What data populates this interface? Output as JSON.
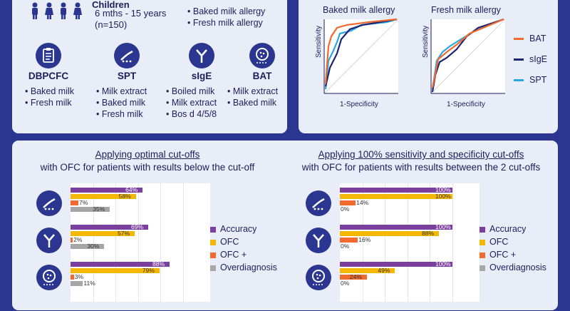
{
  "population": {
    "heading": "Children",
    "age": "6 mths - 15 years",
    "n": "(n=150)",
    "outcomes": [
      "Baked milk allergy",
      "Fresh milk allergy"
    ]
  },
  "methods": [
    {
      "name": "DBPCFC",
      "items": [
        "Baked milk",
        "Fresh milk"
      ]
    },
    {
      "name": "SPT",
      "items": [
        "Milk extract",
        "Baked milk",
        "Fresh milk"
      ]
    },
    {
      "name": "sIgE",
      "items": [
        "Boiled milk",
        "Milk extract",
        "Bos d 4/5/8"
      ]
    },
    {
      "name": "BAT",
      "items": [
        "Milk extract",
        "Baked milk"
      ]
    }
  ],
  "roc": {
    "panels": [
      {
        "title": "Baked milk allergy"
      },
      {
        "title": "Fresh milk allergy"
      }
    ],
    "ylabel": "Sensitivity",
    "xlabel": "1-Specificity",
    "legend": [
      {
        "label": "BAT",
        "color": "#f26a2e"
      },
      {
        "label": "sIgE",
        "color": "#1e2570"
      },
      {
        "label": "SPT",
        "color": "#29a8e0"
      }
    ]
  },
  "left_section": {
    "title": "Applying optimal cut-offs",
    "subtitle": "with OFC for patients with results below the cut-off"
  },
  "right_section": {
    "title": "Applying 100% sensitivity and specificity cut-offs",
    "subtitle": "with OFC for patients with results between the 2 cut-offs"
  },
  "legend_items": [
    {
      "label": "Accuracy",
      "color": "#7b3fa0"
    },
    {
      "label": "OFC",
      "color": "#f5b800"
    },
    {
      "label": "OFC +",
      "color": "#f26a2e"
    },
    {
      "label": "Overdiagnosis",
      "color": "#a6a6a6"
    }
  ],
  "chart_data": [
    {
      "type": "bar",
      "title": "Applying optimal cut-offs",
      "categories": [
        "SPT",
        "sIgE",
        "BAT"
      ],
      "series": [
        {
          "name": "Accuracy",
          "values": [
            64,
            69,
            88
          ],
          "labels": [
            "64%",
            "69%",
            "88%"
          ]
        },
        {
          "name": "OFC",
          "values": [
            58,
            57,
            79
          ],
          "labels": [
            "58%",
            "57%",
            "79%"
          ]
        },
        {
          "name": "OFC +",
          "values": [
            7,
            2,
            3
          ],
          "labels": [
            "7%",
            "2%",
            "3%"
          ]
        },
        {
          "name": "Overdiagnosis",
          "values": [
            35,
            30,
            11
          ],
          "labels": [
            "35%",
            "30%",
            "11%"
          ]
        }
      ],
      "xlim": [
        0,
        100
      ]
    },
    {
      "type": "bar",
      "title": "Applying 100% sensitivity and specificity cut-offs",
      "categories": [
        "SPT",
        "sIgE",
        "BAT"
      ],
      "series": [
        {
          "name": "Accuracy",
          "values": [
            100,
            100,
            100
          ],
          "labels": [
            "100%",
            "100%",
            "100%"
          ]
        },
        {
          "name": "OFC",
          "values": [
            100,
            88,
            49
          ],
          "labels": [
            "100%",
            "88%",
            "49%"
          ]
        },
        {
          "name": "OFC +",
          "values": [
            14,
            16,
            24
          ],
          "labels": [
            "14%",
            "16%",
            "24%"
          ]
        },
        {
          "name": "Overdiagnosis",
          "values": [
            0,
            0,
            0
          ],
          "labels": [
            "0%",
            "0%",
            "0%"
          ]
        }
      ],
      "xlim": [
        0,
        100
      ]
    }
  ]
}
